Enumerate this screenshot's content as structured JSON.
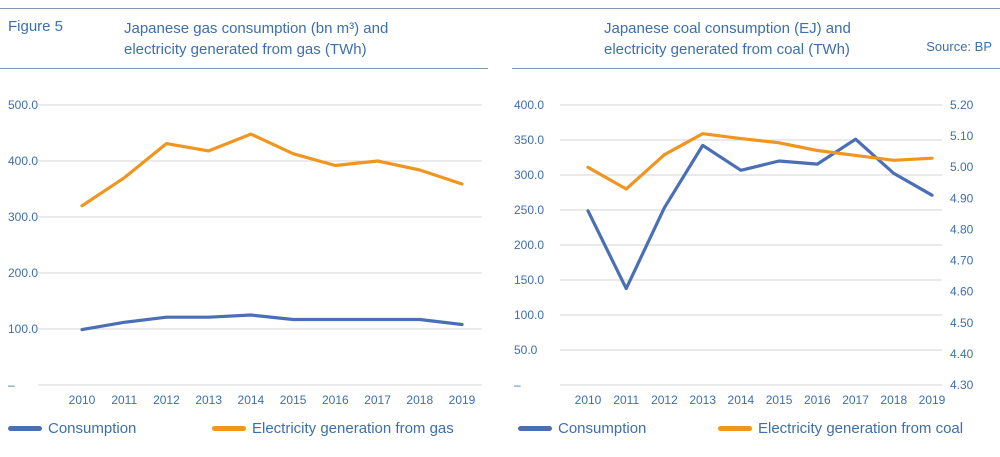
{
  "figure_label": "Figure 5",
  "source": "Source: BP",
  "colors": {
    "consumption": "#4a6fb5",
    "generation": "#f0951f",
    "text": "#3d6fae",
    "grid": "#d6d6d6"
  },
  "chart_data": [
    {
      "type": "line",
      "title": "Japanese gas consumption (bn m³) and\nelectricity generated from gas (TWh)",
      "categories": [
        "2010",
        "2011",
        "2012",
        "2013",
        "2014",
        "2015",
        "2016",
        "2017",
        "2018",
        "2019"
      ],
      "y_ticks": [
        "500.0",
        "400.0",
        "300.0",
        "200.0",
        "100.0",
        "–"
      ],
      "ylim": [
        0,
        500
      ],
      "series": [
        {
          "name": "Consumption",
          "axis": "left",
          "values": [
            99,
            112,
            121,
            121,
            125,
            117,
            117,
            117,
            117,
            108
          ]
        },
        {
          "name": "Electricity generation from gas",
          "axis": "left",
          "values": [
            320,
            370,
            431,
            418,
            448,
            413,
            392,
            400,
            384,
            359
          ]
        }
      ],
      "grid": true,
      "legend_position": "bottom"
    },
    {
      "type": "line",
      "title": "Japanese coal consumption (EJ) and\nelectricity generated from coal (TWh)",
      "categories": [
        "2010",
        "2011",
        "2012",
        "2013",
        "2014",
        "2015",
        "2016",
        "2017",
        "2018",
        "2019"
      ],
      "y_ticks": [
        "400.0",
        "350.0",
        "300.0",
        "250.0",
        "200.0",
        "150.0",
        "100.0",
        "50.0",
        "–"
      ],
      "y2_ticks": [
        "5.20",
        "5.10",
        "5.00",
        "4.90",
        "4.80",
        "4.70",
        "4.60",
        "4.50",
        "4.40",
        "4.30"
      ],
      "ylim": [
        0,
        400
      ],
      "y2lim": [
        4.3,
        5.2
      ],
      "series": [
        {
          "name": "Consumption",
          "axis": "right",
          "values": [
            4.86,
            4.61,
            4.87,
            5.07,
            4.99,
            5.02,
            5.01,
            5.09,
            4.98,
            4.91
          ]
        },
        {
          "name": "Electricity generation from coal",
          "axis": "left",
          "values": [
            311,
            280,
            329,
            359,
            352,
            346,
            335,
            328,
            321,
            324
          ]
        }
      ],
      "grid": true,
      "legend_position": "bottom"
    }
  ]
}
